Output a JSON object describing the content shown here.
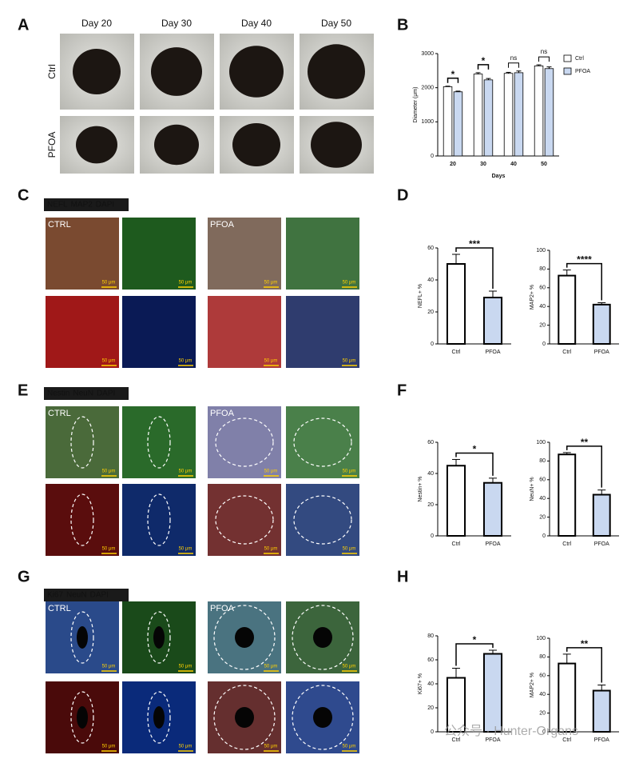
{
  "panel_letters": [
    "A",
    "B",
    "C",
    "D",
    "E",
    "F",
    "G",
    "H"
  ],
  "panel_a": {
    "columns": [
      "Day 20",
      "Day 30",
      "Day 40",
      "Day 50"
    ],
    "rows": [
      "Ctrl",
      "PFOA"
    ]
  },
  "image_panels": [
    {
      "stains": [
        {
          "text": "NEFL",
          "color": "#3cc043"
        },
        {
          "text": "MAP2",
          "color": "#e03a3a"
        },
        {
          "text": "DAPI",
          "color": "#4a8ae8"
        }
      ],
      "labels": [
        "CTRL",
        "PFOA"
      ]
    },
    {
      "stains": [
        {
          "text": "Nestin",
          "color": "#3cc043"
        },
        {
          "text": "NeuN",
          "color": "#e03a3a"
        },
        {
          "text": "DAPI",
          "color": "#4a8ae8"
        }
      ],
      "labels": [
        "CTRL",
        "PFOA"
      ]
    },
    {
      "stains": [
        {
          "text": "Ki67",
          "color": "#3cc043"
        },
        {
          "text": "NeuN",
          "color": "#e03a3a"
        },
        {
          "text": "DAPI",
          "color": "#4a8ae8"
        }
      ],
      "labels": [
        "CTRL",
        "PFOA"
      ]
    }
  ],
  "scale_bar": "50 μm",
  "watermark": "公众号 · Hunter-Organs",
  "chart_data": [
    {
      "type": "bar",
      "categories": [
        "20",
        "30",
        "40",
        "50"
      ],
      "xlabel": "Days",
      "ylabel": "Diameter (μm)",
      "series": [
        {
          "name": "Ctrl",
          "color": "#ffffff",
          "values": [
            2030,
            2400,
            2420,
            2640
          ],
          "errors": [
            15,
            40,
            30,
            30
          ]
        },
        {
          "name": "PFOA",
          "color": "#c9d8f0",
          "values": [
            1880,
            2230,
            2440,
            2560
          ],
          "errors": [
            20,
            40,
            50,
            50
          ]
        }
      ],
      "ylim": [
        0,
        3000
      ],
      "yticks": [
        0,
        1000,
        2000,
        3000
      ],
      "annotations": [
        "*",
        "*",
        "ns",
        "ns"
      ],
      "legend": "upper right"
    },
    {
      "type": "bar",
      "categories": [
        "Ctrl",
        "PFOA"
      ],
      "ylabel": "NEFL+ %",
      "values": [
        50,
        29
      ],
      "errors": [
        6,
        4
      ],
      "colors": [
        "#ffffff",
        "#c9d8f0"
      ],
      "ylim": [
        0,
        60
      ],
      "yticks": [
        0,
        20,
        40,
        60
      ],
      "annotation": "***"
    },
    {
      "type": "bar",
      "categories": [
        "Ctrl",
        "PFOA"
      ],
      "ylabel": "MAP2+ %",
      "values": [
        73,
        42
      ],
      "errors": [
        6,
        2
      ],
      "colors": [
        "#ffffff",
        "#c9d8f0"
      ],
      "ylim": [
        0,
        100
      ],
      "yticks": [
        0,
        20,
        40,
        60,
        80,
        100
      ],
      "annotation": "****"
    },
    {
      "type": "bar",
      "categories": [
        "Ctrl",
        "PFOA"
      ],
      "ylabel": "Nestin+ %",
      "values": [
        45,
        34
      ],
      "errors": [
        4,
        3
      ],
      "colors": [
        "#ffffff",
        "#c9d8f0"
      ],
      "ylim": [
        0,
        60
      ],
      "yticks": [
        0,
        20,
        40,
        60
      ],
      "annotation": "*"
    },
    {
      "type": "bar",
      "categories": [
        "Ctrl",
        "PFOA"
      ],
      "ylabel": "NeuN+ %",
      "values": [
        87,
        44
      ],
      "errors": [
        2,
        5
      ],
      "colors": [
        "#ffffff",
        "#c9d8f0"
      ],
      "ylim": [
        0,
        100
      ],
      "yticks": [
        0,
        20,
        40,
        60,
        80,
        100
      ],
      "annotation": "**"
    },
    {
      "type": "bar",
      "categories": [
        "Ctrl",
        "PFOA"
      ],
      "ylabel": "Ki67+ %",
      "values": [
        45,
        65
      ],
      "errors": [
        8,
        3
      ],
      "colors": [
        "#ffffff",
        "#c9d8f0"
      ],
      "ylim": [
        0,
        80
      ],
      "yticks": [
        0,
        20,
        40,
        60,
        80
      ],
      "annotation": "*"
    },
    {
      "type": "bar",
      "categories": [
        "Ctrl",
        "PFOA"
      ],
      "ylabel": "MAP2+ %",
      "values": [
        73,
        44
      ],
      "errors": [
        10,
        6
      ],
      "colors": [
        "#ffffff",
        "#c9d8f0"
      ],
      "ylim": [
        0,
        100
      ],
      "yticks": [
        0,
        20,
        40,
        60,
        80,
        100
      ],
      "annotation": "**"
    }
  ]
}
